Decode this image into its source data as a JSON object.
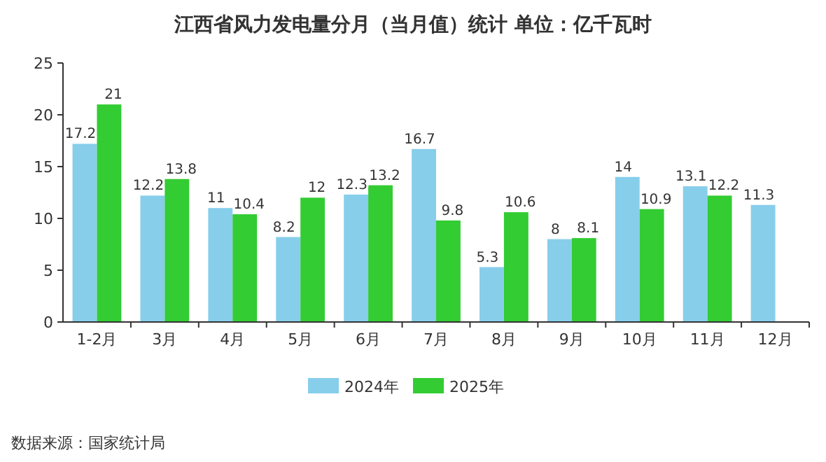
{
  "chart_data": {
    "type": "bar",
    "title": "江西省风力发电量分月（当月值）统计 单位：亿千瓦时",
    "categories": [
      "1-2月",
      "3月",
      "4月",
      "5月",
      "6月",
      "7月",
      "8月",
      "9月",
      "10月",
      "11月",
      "12月"
    ],
    "series": [
      {
        "name": "2024年",
        "color": "#87ceeb",
        "values": [
          17.2,
          12.2,
          11,
          8.2,
          12.3,
          16.7,
          5.3,
          8,
          14,
          13.1,
          11.3
        ]
      },
      {
        "name": "2025年",
        "color": "#33cc33",
        "values": [
          21,
          13.8,
          10.4,
          12,
          13.2,
          9.8,
          10.6,
          8.1,
          10.9,
          12.2,
          null
        ]
      }
    ],
    "ylim": [
      0,
      25
    ],
    "yticks": [
      0,
      5,
      10,
      15,
      20,
      25
    ],
    "data_labels": true,
    "legend": "bottom",
    "annotations": [
      "数据来源：国家统计局"
    ]
  }
}
